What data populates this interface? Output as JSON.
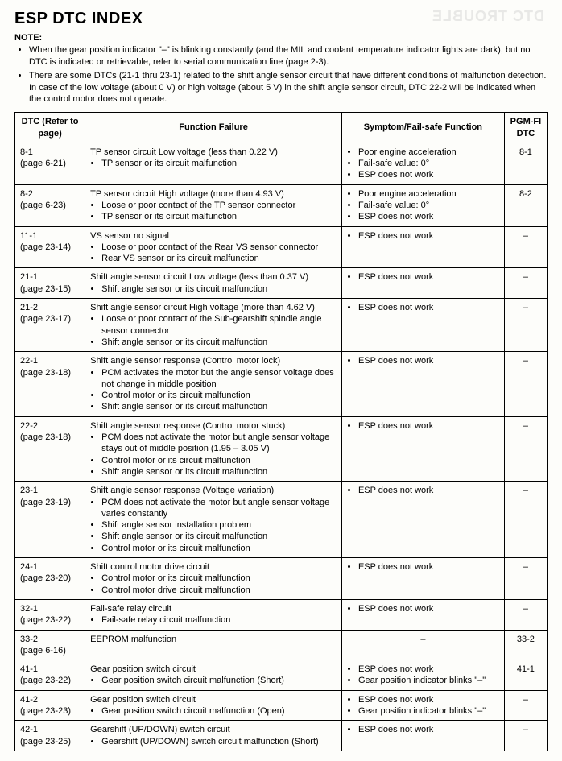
{
  "title": "ESP DTC INDEX",
  "noteLabel": "NOTE:",
  "notes": [
    "When the gear position indicator \"–\" is blinking constantly (and the MIL and coolant temperature indicator lights are dark), but no DTC is indicated or retrievable, refer to serial communication line (page 2-3).",
    "There are some DTCs (21-1 thru 23-1) related to the shift angle sensor circuit that have different conditions of malfunction detection. In case of the low voltage (about 0 V) or high voltage (about 5 V) in the shift angle sensor circuit, DTC 22-2 will be indicated when the control motor does not operate."
  ],
  "headers": {
    "dtc": "DTC (Refer to page)",
    "func": "Function Failure",
    "sym": "Symptom/Fail-safe Function",
    "pgm": "PGM-FI DTC"
  },
  "rows": [
    {
      "dtc": "8-1",
      "page": "(page 6-21)",
      "funcLead": "TP sensor circuit Low voltage (less than 0.22 V)",
      "funcBullets": [
        "TP sensor or its circuit malfunction"
      ],
      "symBullets": [
        "Poor engine acceleration",
        "Fail-safe value: 0°",
        "ESP does not work"
      ],
      "pgm": "8-1"
    },
    {
      "dtc": "8-2",
      "page": "(page 6-23)",
      "funcLead": "TP sensor circuit High voltage (more than 4.93 V)",
      "funcBullets": [
        "Loose or poor contact of the TP sensor connector",
        "TP sensor or its circuit malfunction"
      ],
      "symBullets": [
        "Poor engine acceleration",
        "Fail-safe value: 0°",
        "ESP does not work"
      ],
      "pgm": "8-2"
    },
    {
      "dtc": "11-1",
      "page": "(page 23-14)",
      "funcLead": "VS sensor no signal",
      "funcBullets": [
        "Loose or poor contact of the Rear VS sensor connector",
        "Rear VS sensor or its circuit malfunction"
      ],
      "symBullets": [
        "ESP does not work"
      ],
      "pgm": "–"
    },
    {
      "dtc": "21-1",
      "page": "(page 23-15)",
      "funcLead": "Shift angle sensor circuit Low voltage (less than 0.37 V)",
      "funcBullets": [
        "Shift angle sensor or its circuit malfunction"
      ],
      "symBullets": [
        "ESP does not work"
      ],
      "pgm": "–"
    },
    {
      "dtc": "21-2",
      "page": "(page 23-17)",
      "funcLead": "Shift angle sensor circuit High voltage (more than 4.62 V)",
      "funcBullets": [
        "Loose or poor contact of the Sub-gearshift spindle angle sensor connector",
        "Shift angle sensor or its circuit malfunction"
      ],
      "symBullets": [
        "ESP does not work"
      ],
      "pgm": "–"
    },
    {
      "dtc": "22-1",
      "page": "(page 23-18)",
      "funcLead": "Shift angle sensor response (Control motor lock)",
      "funcBullets": [
        "PCM activates the motor but the angle sensor voltage does not change in middle position",
        "Control motor or its circuit malfunction",
        "Shift angle sensor or its circuit malfunction"
      ],
      "symBullets": [
        "ESP does not work"
      ],
      "pgm": "–"
    },
    {
      "dtc": "22-2",
      "page": "(page 23-18)",
      "funcLead": "Shift angle sensor response (Control motor stuck)",
      "funcBullets": [
        "PCM does not activate the motor but angle sensor voltage stays out of middle position (1.95 – 3.05 V)",
        "Control motor or its circuit malfunction",
        "Shift angle sensor or its circuit malfunction"
      ],
      "symBullets": [
        "ESP does not work"
      ],
      "pgm": "–"
    },
    {
      "dtc": "23-1",
      "page": "(page 23-19)",
      "funcLead": "Shift angle sensor response (Voltage variation)",
      "funcBullets": [
        "PCM does not activate the motor but angle sensor voltage varies constantly",
        "Shift angle sensor installation problem",
        "Shift angle sensor or its circuit malfunction",
        "Control motor or its circuit malfunction"
      ],
      "symBullets": [
        "ESP does not work"
      ],
      "pgm": "–"
    },
    {
      "dtc": "24-1",
      "page": "(page 23-20)",
      "funcLead": "Shift control motor drive circuit",
      "funcBullets": [
        "Control motor or its circuit malfunction",
        "Control motor drive circuit malfunction"
      ],
      "symBullets": [
        "ESP does not work"
      ],
      "pgm": "–"
    },
    {
      "dtc": "32-1",
      "page": "(page 23-22)",
      "funcLead": "Fail-safe relay circuit",
      "funcBullets": [
        "Fail-safe relay circuit malfunction"
      ],
      "symBullets": [
        "ESP does not work"
      ],
      "pgm": "–"
    },
    {
      "dtc": "33-2",
      "page": "(page 6-16)",
      "funcLead": "EEPROM malfunction",
      "funcBullets": [],
      "symLead": "–",
      "symBullets": [],
      "pgm": "33-2"
    },
    {
      "dtc": "41-1",
      "page": "(page 23-22)",
      "funcLead": "Gear position switch circuit",
      "funcBullets": [
        "Gear position switch circuit malfunction (Short)"
      ],
      "symBullets": [
        "ESP does not work",
        "Gear position indicator blinks \"–\""
      ],
      "pgm": "41-1"
    },
    {
      "dtc": "41-2",
      "page": "(page 23-23)",
      "funcLead": "Gear position switch circuit",
      "funcBullets": [
        "Gear position switch circuit malfunction (Open)"
      ],
      "symBullets": [
        "ESP does not work",
        "Gear position indicator blinks \"–\""
      ],
      "pgm": "–"
    },
    {
      "dtc": "42-1",
      "page": "(page 23-25)",
      "funcLead": "Gearshift (UP/DOWN) switch circuit",
      "funcBullets": [
        "Gearshift (UP/DOWN) switch circuit malfunction (Short)"
      ],
      "symBullets": [
        "ESP does not work"
      ],
      "pgm": "–"
    }
  ]
}
